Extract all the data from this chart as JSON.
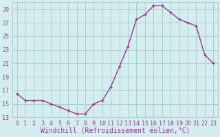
{
  "x": [
    0,
    1,
    2,
    3,
    4,
    5,
    6,
    7,
    8,
    9,
    10,
    11,
    12,
    13,
    14,
    15,
    16,
    17,
    18,
    19,
    20,
    21,
    22,
    23
  ],
  "y": [
    16.5,
    15.5,
    15.5,
    15.5,
    15.0,
    14.5,
    14.0,
    13.5,
    13.5,
    15.0,
    15.5,
    17.5,
    20.5,
    23.5,
    27.5,
    28.2,
    29.5,
    29.5,
    28.5,
    27.5,
    27.0,
    26.5,
    22.2,
    21.0
  ],
  "line_color": "#993399",
  "marker": "+",
  "marker_size": 3,
  "marker_linewidth": 1.0,
  "linewidth": 1.0,
  "xlabel": "Windchill (Refroidissement éolien,°C)",
  "xlim_min": -0.5,
  "xlim_max": 23.5,
  "ylim_min": 13,
  "ylim_max": 30,
  "yticks": [
    13,
    15,
    17,
    19,
    21,
    23,
    25,
    27,
    29
  ],
  "xticks": [
    0,
    1,
    2,
    3,
    4,
    5,
    6,
    7,
    8,
    9,
    10,
    11,
    12,
    13,
    14,
    15,
    16,
    17,
    18,
    19,
    20,
    21,
    22,
    23
  ],
  "background_color": "#d4eeee",
  "grid_color": "#aacccc",
  "label_color": "#993399",
  "tick_labelsize": 6,
  "xlabel_fontsize": 7
}
